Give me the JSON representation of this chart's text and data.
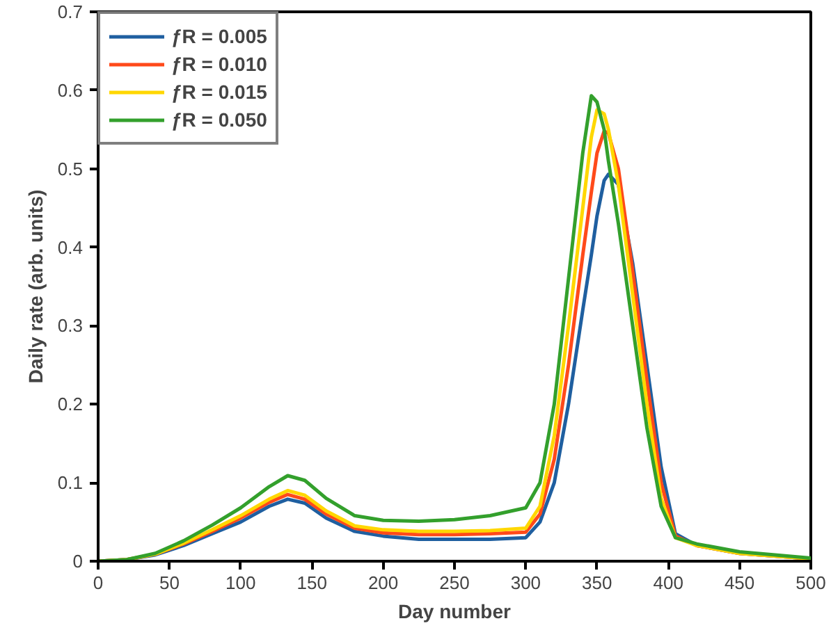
{
  "chart_data": {
    "type": "line",
    "xlabel": "Day number",
    "ylabel": "Daily rate (arb. units)",
    "xlim": [
      0,
      500
    ],
    "ylim": [
      0,
      0.7
    ],
    "xticks": [
      0,
      50,
      100,
      150,
      200,
      250,
      300,
      350,
      400,
      450,
      500
    ],
    "yticks": [
      0,
      0.1,
      0.2,
      0.3,
      0.4,
      0.5,
      0.6,
      0.7
    ],
    "x": [
      0,
      20,
      40,
      60,
      80,
      100,
      120,
      133,
      145,
      160,
      180,
      200,
      225,
      250,
      275,
      300,
      310,
      320,
      330,
      340,
      346,
      350,
      355,
      358,
      365,
      375,
      385,
      395,
      405,
      420,
      450,
      500
    ],
    "series": [
      {
        "name": "ƒR = 0.005",
        "color": "#1f5fa0",
        "values": [
          0,
          0.002,
          0.008,
          0.02,
          0.035,
          0.05,
          0.07,
          0.079,
          0.074,
          0.055,
          0.038,
          0.032,
          0.028,
          0.028,
          0.028,
          0.03,
          0.05,
          0.1,
          0.2,
          0.32,
          0.39,
          0.44,
          0.485,
          0.493,
          0.48,
          0.38,
          0.25,
          0.12,
          0.035,
          0.02,
          0.01,
          0.003
        ]
      },
      {
        "name": "ƒR = 0.010",
        "color": "#ff4a1a",
        "values": [
          0,
          0.002,
          0.009,
          0.022,
          0.038,
          0.055,
          0.075,
          0.085,
          0.079,
          0.06,
          0.042,
          0.036,
          0.034,
          0.034,
          0.035,
          0.037,
          0.06,
          0.13,
          0.25,
          0.39,
          0.47,
          0.52,
          0.548,
          0.545,
          0.5,
          0.37,
          0.23,
          0.1,
          0.032,
          0.02,
          0.01,
          0.003
        ]
      },
      {
        "name": "ƒR = 0.015",
        "color": "#ffd700",
        "values": [
          0,
          0.002,
          0.009,
          0.023,
          0.04,
          0.058,
          0.079,
          0.09,
          0.084,
          0.064,
          0.045,
          0.04,
          0.038,
          0.038,
          0.039,
          0.042,
          0.07,
          0.16,
          0.3,
          0.45,
          0.54,
          0.575,
          0.57,
          0.55,
          0.48,
          0.34,
          0.2,
          0.08,
          0.03,
          0.02,
          0.01,
          0.003
        ]
      },
      {
        "name": "ƒR = 0.050",
        "color": "#33a02c",
        "values": [
          0,
          0.002,
          0.01,
          0.026,
          0.046,
          0.068,
          0.095,
          0.109,
          0.103,
          0.08,
          0.058,
          0.052,
          0.051,
          0.053,
          0.058,
          0.068,
          0.1,
          0.2,
          0.36,
          0.52,
          0.593,
          0.585,
          0.55,
          0.51,
          0.43,
          0.3,
          0.17,
          0.07,
          0.03,
          0.022,
          0.012,
          0.004
        ]
      }
    ],
    "legend": "top left",
    "grid": false
  }
}
